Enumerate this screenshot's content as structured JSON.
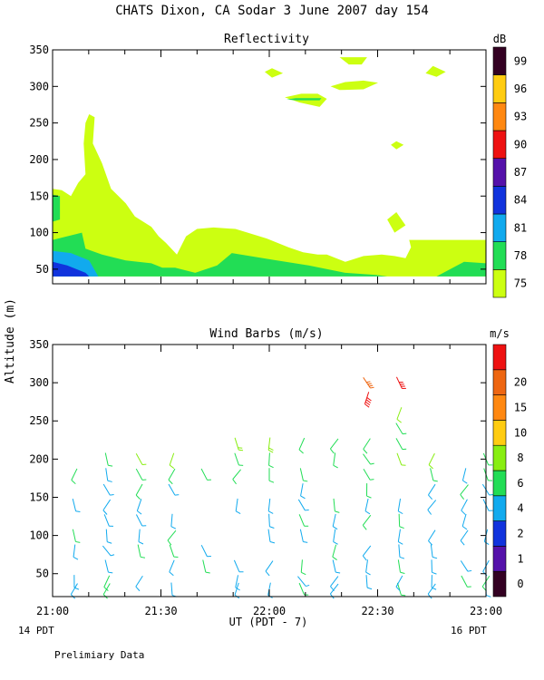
{
  "title": "CHATS Dixon, CA  Sodar   3 June 2007  day 154",
  "ylabel": "Altitude (m)",
  "xlabel": "UT  (PDT - 7)",
  "x_ticks": [
    "21:00",
    "21:30",
    "22:00",
    "22:30",
    "23:00"
  ],
  "x_note_left": "14 PDT",
  "x_note_right": "16 PDT",
  "footnote": "Prelimiary Data",
  "chart_data": [
    {
      "type": "heatmap",
      "title": "Reflectivity",
      "colorbar_label": "dB",
      "x_range": [
        "21:00",
        "23:00"
      ],
      "ylim": [
        30,
        350
      ],
      "y_ticks": [
        50,
        100,
        150,
        200,
        250,
        300,
        350
      ],
      "levels": [
        {
          "label": "75",
          "color": "#ccff11"
        },
        {
          "label": "78",
          "color": "#22dd55"
        },
        {
          "label": "81",
          "color": "#11aaee"
        },
        {
          "label": "84",
          "color": "#1133dd"
        },
        {
          "label": "87",
          "color": "#5511aa"
        },
        {
          "label": "90",
          "color": "#ee1111"
        },
        {
          "label": "93",
          "color": "#ff8811"
        },
        {
          "label": "96",
          "color": "#ffcc11"
        },
        {
          "label": "99",
          "color": "#330022"
        }
      ],
      "regions": [
        {
          "level": 0,
          "points": [
            [
              0,
              160
            ],
            [
              5,
              158
            ],
            [
              10,
              150
            ],
            [
              14,
              168
            ],
            [
              18,
              180
            ],
            [
              17,
              222
            ],
            [
              18,
              250
            ],
            [
              20,
              262
            ],
            [
              23,
              258
            ],
            [
              22,
              222
            ],
            [
              27,
              195
            ],
            [
              32,
              160
            ],
            [
              40,
              140
            ],
            [
              45,
              122
            ],
            [
              54,
              108
            ],
            [
              58,
              95
            ],
            [
              62,
              86
            ],
            [
              68,
              70
            ],
            [
              73,
              95
            ],
            [
              79,
              105
            ],
            [
              88,
              107
            ],
            [
              100,
              105
            ],
            [
              117,
              92
            ],
            [
              129,
              80
            ],
            [
              137,
              73
            ],
            [
              145,
              70
            ],
            [
              150,
              70
            ],
            [
              160,
              60
            ],
            [
              170,
              68
            ],
            [
              180,
              70
            ],
            [
              187,
              68
            ],
            [
              193,
              65
            ],
            [
              196,
              80
            ],
            [
              195,
              90
            ],
            [
              237,
              90
            ],
            [
              237,
              40
            ],
            [
              0,
              40
            ]
          ]
        },
        {
          "level": 0,
          "points": [
            [
              183,
              118
            ],
            [
              188,
              128
            ],
            [
              193,
              110
            ],
            [
              187,
              100
            ]
          ]
        },
        {
          "level": 0,
          "points": [
            [
              185,
              220
            ],
            [
              188,
              225
            ],
            [
              192,
              220
            ],
            [
              188,
              214
            ]
          ]
        },
        {
          "level": 0,
          "points": [
            [
              127,
              285
            ],
            [
              136,
              290
            ],
            [
              145,
              290
            ],
            [
              150,
              283
            ],
            [
              146,
              272
            ],
            [
              135,
              278
            ]
          ]
        },
        {
          "level": 0,
          "points": [
            [
              152,
              300
            ],
            [
              160,
              306
            ],
            [
              170,
              308
            ],
            [
              178,
              305
            ],
            [
              170,
              296
            ],
            [
              157,
              295
            ]
          ]
        },
        {
          "level": 0,
          "points": [
            [
              157,
              340
            ],
            [
              172,
              340
            ],
            [
              169,
              330
            ],
            [
              162,
              330
            ]
          ]
        },
        {
          "level": 0,
          "points": [
            [
              116,
              320
            ],
            [
              120,
              325
            ],
            [
              126,
              318
            ],
            [
              120,
              312
            ]
          ]
        },
        {
          "level": 0,
          "points": [
            [
              204,
              318
            ],
            [
              208,
              328
            ],
            [
              215,
              320
            ],
            [
              210,
              313
            ]
          ]
        },
        {
          "level": 1,
          "points": [
            [
              0,
              90
            ],
            [
              16,
              100
            ],
            [
              18,
              78
            ],
            [
              27,
              70
            ],
            [
              40,
              62
            ],
            [
              54,
              58
            ],
            [
              60,
              52
            ],
            [
              67,
              52
            ],
            [
              78,
              45
            ],
            [
              90,
              55
            ],
            [
              98,
              72
            ],
            [
              120,
              63
            ],
            [
              140,
              55
            ],
            [
              160,
              45
            ],
            [
              177,
              42
            ],
            [
              183,
              40
            ],
            [
              0,
              40
            ]
          ]
        },
        {
          "level": 1,
          "points": [
            [
              0,
              115
            ],
            [
              4,
              118
            ],
            [
              4,
              150
            ],
            [
              0,
              152
            ]
          ]
        },
        {
          "level": 1,
          "points": [
            [
              190,
              40
            ],
            [
              200,
              40
            ],
            [
              210,
              40
            ],
            [
              225,
              60
            ],
            [
              237,
              58
            ],
            [
              237,
              40
            ]
          ]
        },
        {
          "level": 1,
          "points": [
            [
              128,
              282
            ],
            [
              133,
              284
            ],
            [
              147,
              284
            ],
            [
              146,
              281
            ],
            [
              133,
              281
            ]
          ]
        },
        {
          "level": 2,
          "points": [
            [
              0,
              75
            ],
            [
              10,
              72
            ],
            [
              20,
              62
            ],
            [
              25,
              40
            ],
            [
              0,
              40
            ]
          ]
        },
        {
          "level": 3,
          "points": [
            [
              0,
              60
            ],
            [
              8,
              55
            ],
            [
              18,
              45
            ],
            [
              20,
              40
            ],
            [
              0,
              40
            ]
          ]
        }
      ]
    },
    {
      "type": "scatter",
      "title": "Wind Barbs (m/s)",
      "colorbar_label": "m/s",
      "x_range": [
        "21:00",
        "23:00"
      ],
      "ylim": [
        20,
        350
      ],
      "y_ticks": [
        50,
        100,
        150,
        200,
        250,
        300,
        350
      ],
      "levels": [
        {
          "label": "0",
          "color": "#330022"
        },
        {
          "label": "1",
          "color": "#5511aa"
        },
        {
          "label": "2",
          "color": "#1133dd"
        },
        {
          "label": "4",
          "color": "#11aaee"
        },
        {
          "label": "6",
          "color": "#22dd55"
        },
        {
          "label": "8",
          "color": "#88ee11"
        },
        {
          "label": "10",
          "color": "#ffcc11"
        },
        {
          "label": "15",
          "color": "#ff8811"
        },
        {
          "label": "20",
          "color": "#ee6611"
        },
        {
          "label": "",
          "color": "#ee1111"
        }
      ],
      "barb_columns": [
        "21:06",
        "21:15",
        "21:24",
        "21:33",
        "21:42",
        "21:51",
        "22:00",
        "22:09",
        "22:18",
        "22:27",
        "22:36",
        "22:45",
        "22:54",
        "23:00"
      ],
      "barb_heights": [
        30,
        40,
        60,
        80,
        100,
        120,
        140,
        160,
        180,
        200,
        220,
        240,
        260,
        280,
        300
      ]
    }
  ]
}
